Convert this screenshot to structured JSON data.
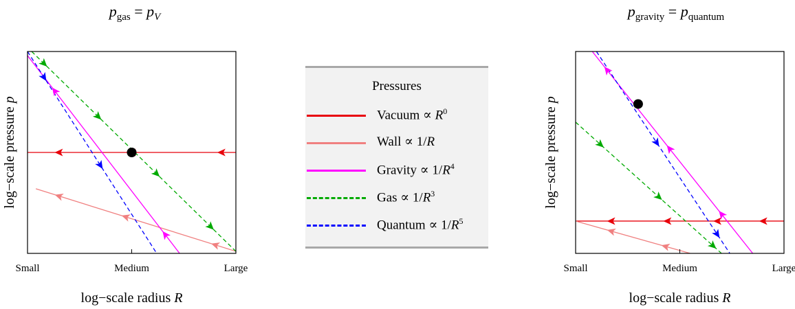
{
  "chart_data": [
    {
      "type": "line",
      "title": "p_gas = p_V",
      "title_parts": {
        "left": "p",
        "left_sub": "gas",
        "eq": " = ",
        "right": "p",
        "right_sub": "V"
      },
      "xlabel": "log−scale radius R",
      "ylabel": "log−scale pressure p",
      "x_ticks": [
        "Small",
        "Medium",
        "Large"
      ],
      "xlim": [
        0,
        1
      ],
      "ylim": [
        0,
        1
      ],
      "grid": false,
      "series": [
        {
          "name": "Vacuum ∝ R0",
          "color": "#e8000b",
          "dash": "solid",
          "x": [
            0,
            1
          ],
          "y": [
            0.5,
            0.5
          ],
          "arrow_x": [
            0.15,
            0.5,
            0.93
          ],
          "arrow_dir": "left"
        },
        {
          "name": "Wall ∝ 1/R",
          "color": "#f08080",
          "dash": "solid",
          "x": [
            0.04,
            1
          ],
          "y": [
            0.32,
            0.01
          ],
          "arrow_x": [
            0.15,
            0.47,
            0.9
          ],
          "arrow_dir": "left"
        },
        {
          "name": "Gravity ∝ 1/R4",
          "color": "#ff00ff",
          "dash": "solid",
          "x": [
            0,
            0.73
          ],
          "y": [
            0.98,
            0
          ],
          "arrow_x": [
            0.13,
            0.66
          ],
          "arrow_dir": "left"
        },
        {
          "name": "Gas ∝ 1/R3",
          "color": "#00aa00",
          "dash": "dashed",
          "x": [
            0.02,
            1
          ],
          "y": [
            1.0,
            0.01
          ],
          "arrow_x": [
            0.08,
            0.34,
            0.62,
            0.88
          ],
          "arrow_dir": "right"
        },
        {
          "name": "Quantum ∝ 1/R5",
          "color": "#0000ff",
          "dash": "dashed",
          "x": [
            0,
            0.62
          ],
          "y": [
            1.0,
            0.0
          ],
          "arrow_x": [
            0.08,
            0.35
          ],
          "arrow_dir": "right"
        }
      ],
      "points": [
        {
          "x": 0.5,
          "y": 0.5,
          "color": "#000000"
        }
      ]
    },
    {
      "type": "line",
      "title": "p_gravity = p_quantum",
      "title_parts": {
        "left": "p",
        "left_sub": "gravity",
        "eq": " = ",
        "right": "p",
        "right_sub": "quantum"
      },
      "xlabel": "log−scale radius R",
      "ylabel": "log−scale pressure p",
      "x_ticks": [
        "Small",
        "Medium",
        "Large"
      ],
      "xlim": [
        0,
        1
      ],
      "ylim": [
        0,
        1
      ],
      "grid": false,
      "series": [
        {
          "name": "Vacuum ∝ R0",
          "color": "#e8000b",
          "dash": "solid",
          "x": [
            0,
            1
          ],
          "y": [
            0.16,
            0.16
          ],
          "arrow_x": [
            0.17,
            0.44,
            0.68,
            0.9
          ],
          "arrow_dir": "left"
        },
        {
          "name": "Wall ∝ 1/R",
          "color": "#f08080",
          "dash": "solid",
          "x": [
            0,
            0.55
          ],
          "y": [
            0.16,
            0.0
          ],
          "arrow_x": [
            0.17,
            0.43
          ],
          "arrow_dir": "left"
        },
        {
          "name": "Gravity ∝ 1/R4",
          "color": "#ff00ff",
          "dash": "solid",
          "x": [
            0.08,
            0.85
          ],
          "y": [
            1.0,
            0.0
          ],
          "arrow_x": [
            0.15,
            0.45,
            0.7
          ],
          "arrow_dir": "left"
        },
        {
          "name": "Gas ∝ 1/R3",
          "color": "#00aa00",
          "dash": "dashed",
          "x": [
            0,
            0.7
          ],
          "y": [
            0.65,
            0.0
          ],
          "arrow_x": [
            0.12,
            0.4,
            0.66
          ],
          "arrow_dir": "right"
        },
        {
          "name": "Quantum ∝ 1/R5",
          "color": "#0000ff",
          "dash": "dashed",
          "x": [
            0.1,
            0.74
          ],
          "y": [
            1.0,
            0.0
          ],
          "arrow_x": [
            0.39,
            0.68
          ],
          "arrow_dir": "right"
        }
      ],
      "points": [
        {
          "x": 0.3,
          "y": 0.74,
          "color": "#000000"
        }
      ]
    }
  ],
  "legend": {
    "title": "Pressures",
    "items": [
      {
        "name": "Vacuum ∝",
        "var": "R",
        "prefix": "",
        "exp": "0",
        "color": "#e8000b",
        "dash": "solid"
      },
      {
        "name": "Wall ∝",
        "var": "R",
        "prefix": "1/",
        "exp": "",
        "color": "#f08080",
        "dash": "solid"
      },
      {
        "name": "Gravity ∝",
        "var": "R",
        "prefix": "1/",
        "exp": "4",
        "color": "#ff00ff",
        "dash": "solid"
      },
      {
        "name": "Gas ∝",
        "var": "R",
        "prefix": "1/",
        "exp": "3",
        "color": "#00aa00",
        "dash": "dashed"
      },
      {
        "name": "Quantum ∝",
        "var": "R",
        "prefix": "1/",
        "exp": "5",
        "color": "#0000ff",
        "dash": "dashed"
      }
    ]
  }
}
